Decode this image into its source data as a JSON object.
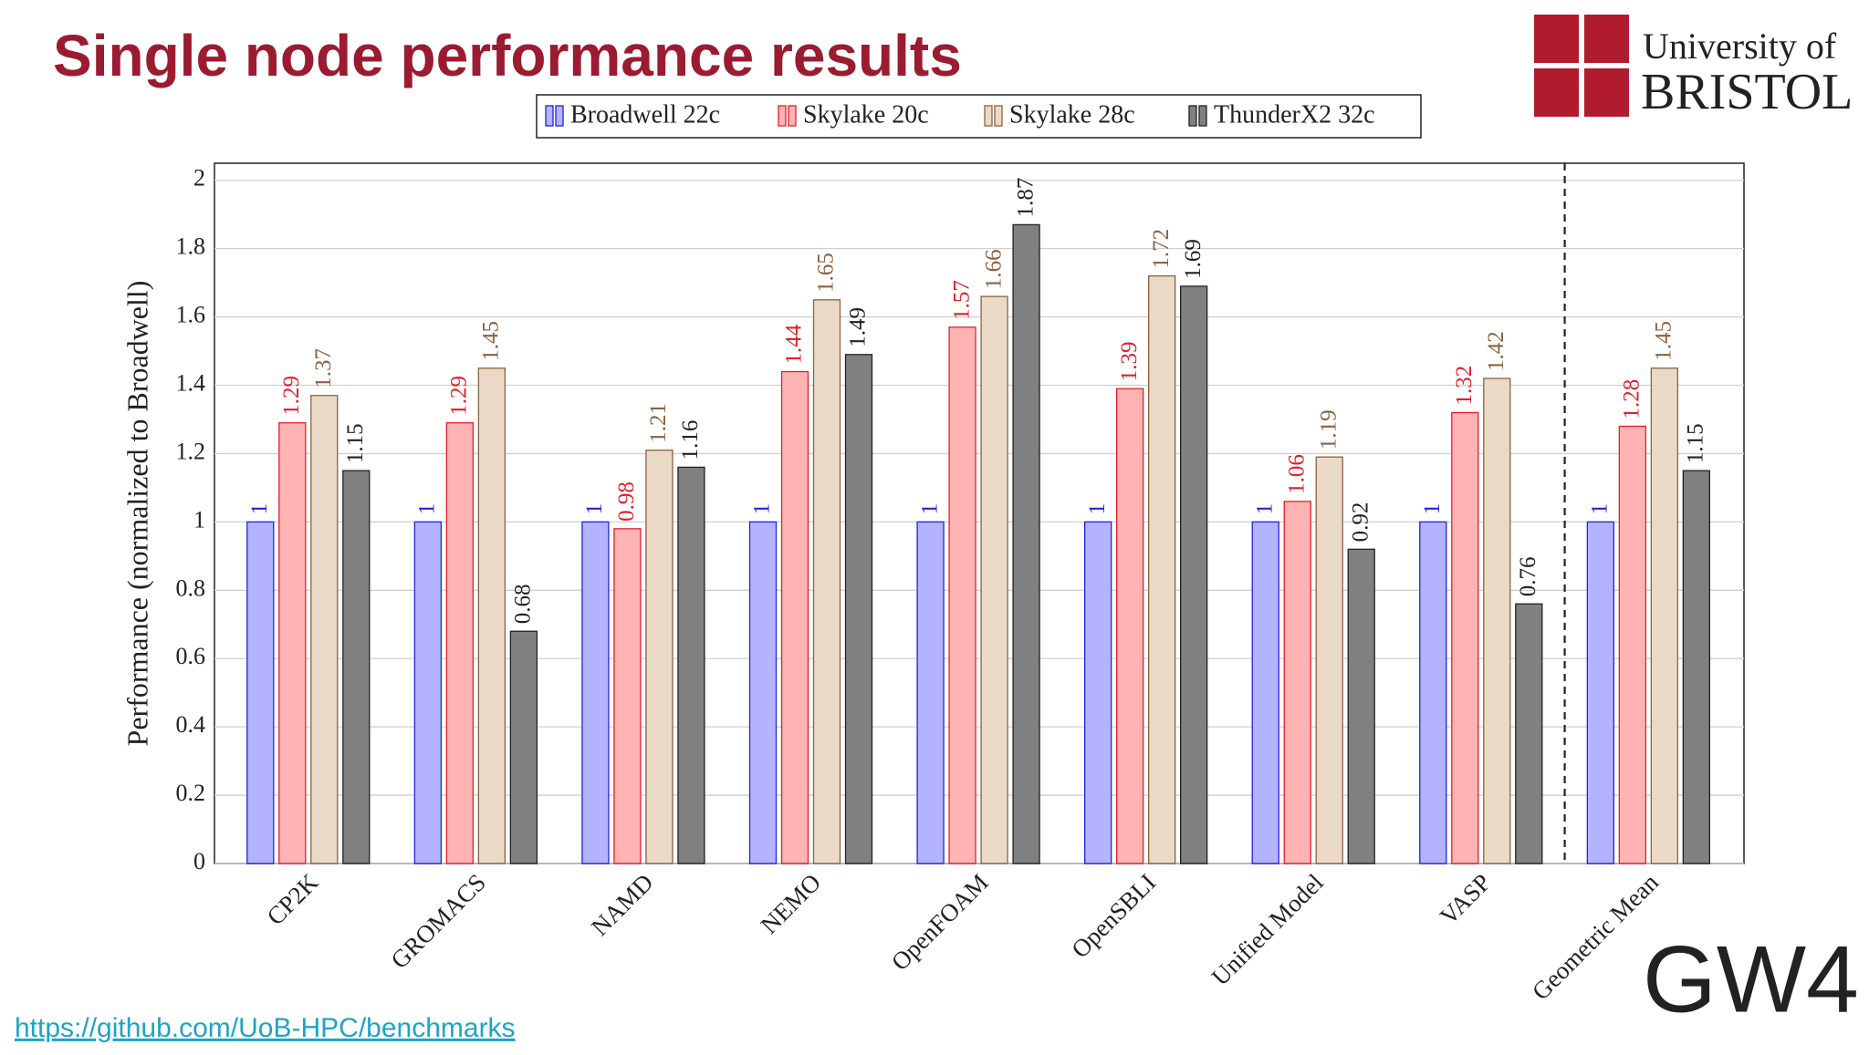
{
  "chart_data": {
    "type": "bar",
    "title": "Single node performance results",
    "y_label": "Performance (normalized to Broadwell)",
    "categories": [
      "CP2K",
      "GROMACS",
      "NAMD",
      "NEMO",
      "OpenFOAM",
      "OpenSBLI",
      "Unified Model",
      "VASP",
      "Geometric Mean"
    ],
    "series": [
      {
        "name": "Broadwell 22c",
        "color": "#b3b3ff",
        "edge_color": "#2424d6",
        "values": [
          1,
          1,
          1,
          1,
          1,
          1,
          1,
          1,
          1
        ]
      },
      {
        "name": "Skylake 20c",
        "color": "#ffb3b3",
        "edge_color": "#e0202a",
        "values": [
          1.29,
          1.29,
          0.98,
          1.44,
          1.57,
          1.39,
          1.06,
          1.32,
          1.28
        ]
      },
      {
        "name": "Skylake 28c",
        "color": "#ead9c6",
        "edge_color": "#8b6240",
        "values": [
          1.37,
          1.45,
          1.21,
          1.65,
          1.66,
          1.72,
          1.19,
          1.42,
          1.45
        ]
      },
      {
        "name": "ThunderX2 32c",
        "color": "#808080",
        "edge_color": "#222222",
        "values": [
          1.15,
          0.68,
          1.16,
          1.49,
          1.87,
          1.69,
          0.92,
          0.76,
          1.15
        ]
      }
    ],
    "ylim": [
      0,
      2.05
    ],
    "yticks": [
      0,
      0.2,
      0.4,
      0.6,
      0.8,
      1,
      1.2,
      1.4,
      1.6,
      1.8,
      2
    ],
    "grid": true,
    "legend": "top"
  },
  "logos": {
    "university_line1": "University of",
    "university_line2": "BRISTOL",
    "gw4": "GW4"
  },
  "footer": {
    "link": "https://github.com/UoB-HPC/benchmarks"
  }
}
